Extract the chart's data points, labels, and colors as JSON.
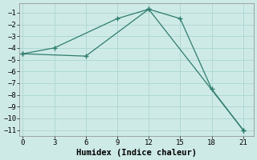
{
  "xlabel": "Humidex (Indice chaleur)",
  "background_color": "#ceeae7",
  "grid_color": "#b0d8d4",
  "line_color": "#2e7d6e",
  "series": [
    {
      "x": [
        0,
        3,
        9,
        12,
        15,
        18,
        21
      ],
      "y": [
        -4.5,
        -4.0,
        -1.5,
        -0.7,
        -1.5,
        -7.5,
        -11.0
      ]
    },
    {
      "x": [
        0,
        6,
        12,
        21
      ],
      "y": [
        -4.5,
        -4.7,
        -0.7,
        -11.0
      ]
    }
  ],
  "xticks": [
    0,
    3,
    6,
    9,
    12,
    15,
    18,
    21
  ],
  "yticks": [
    -1,
    -2,
    -3,
    -4,
    -5,
    -6,
    -7,
    -8,
    -9,
    -10,
    -11
  ],
  "xlim": [
    -0.3,
    22.0
  ],
  "ylim": [
    -11.5,
    -0.2
  ]
}
